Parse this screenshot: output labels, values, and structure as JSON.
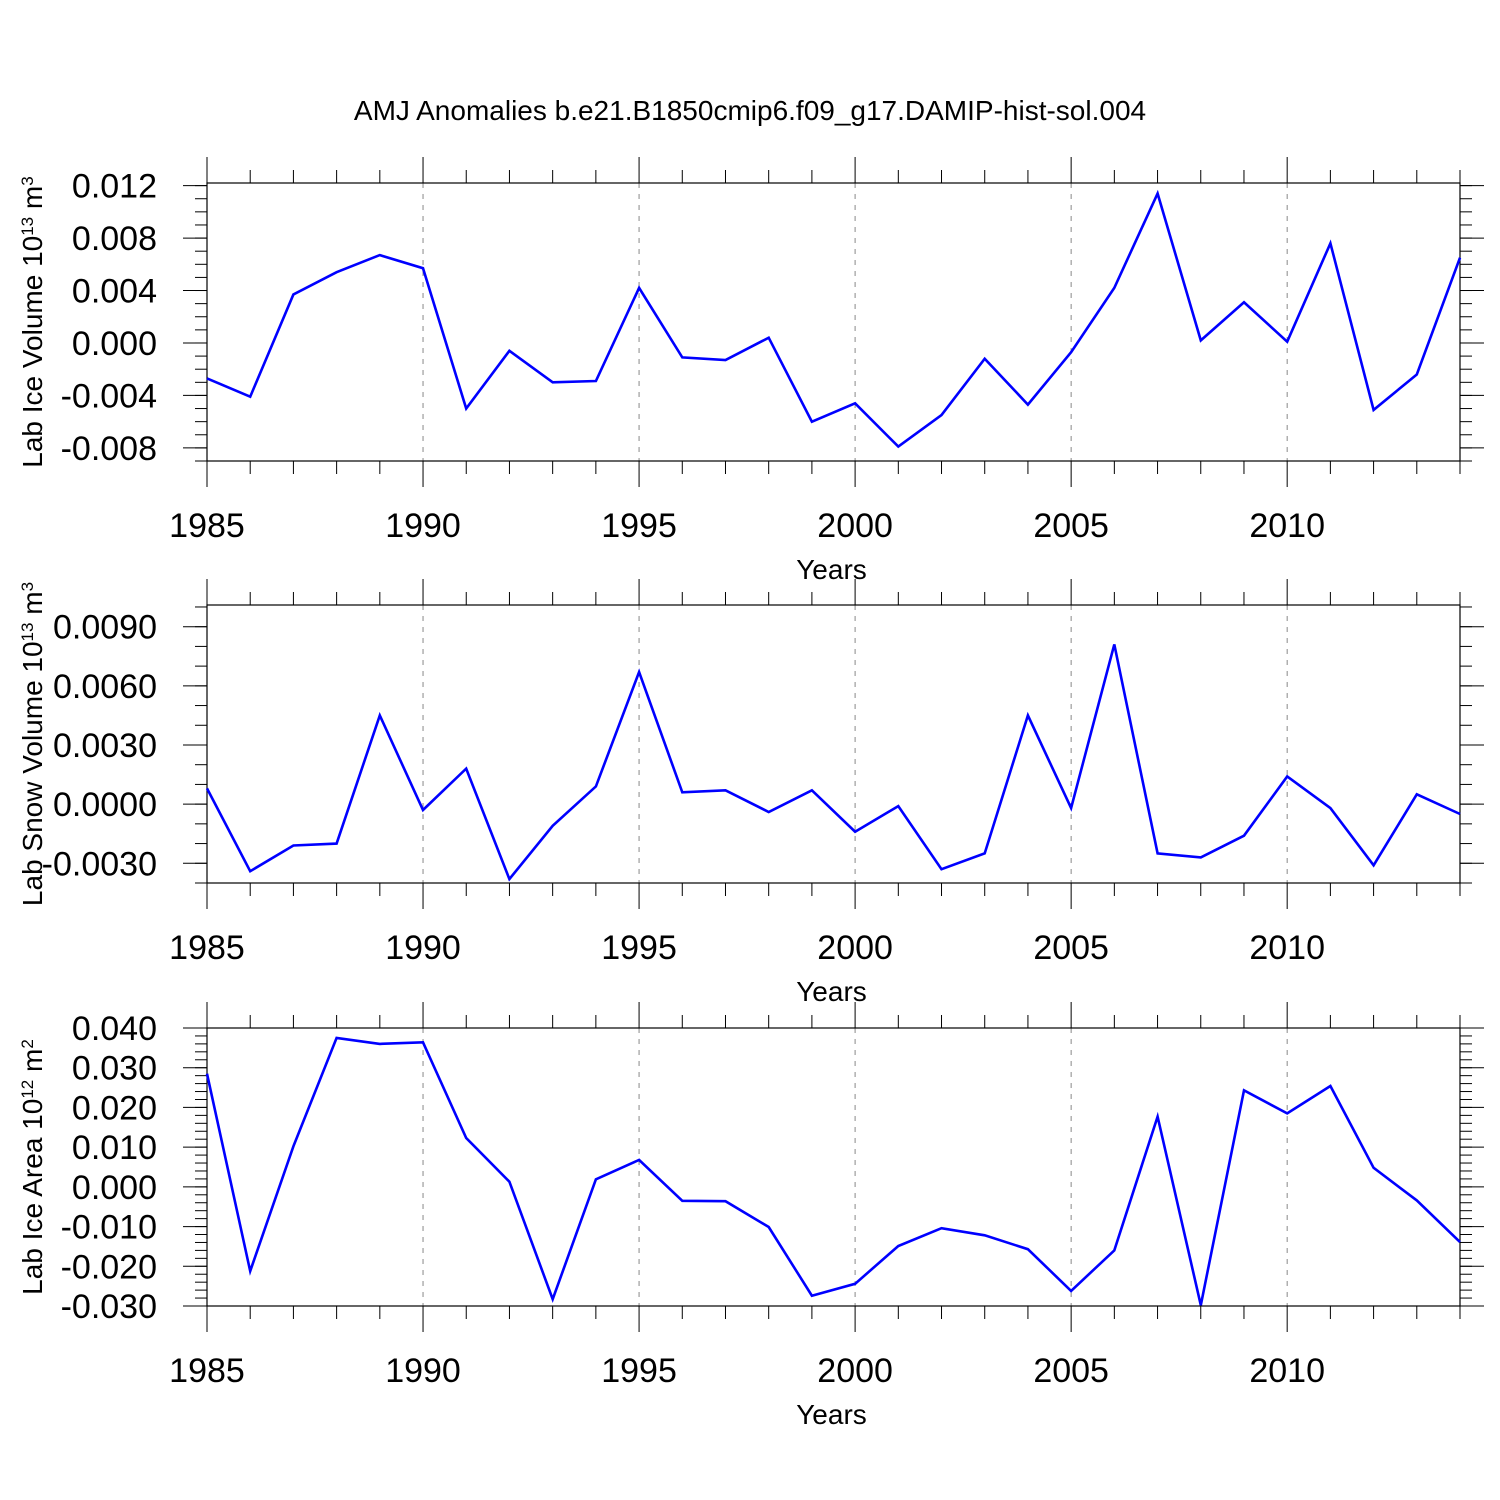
{
  "figure_title": "AMJ Anomalies b.e21.B1850cmip6.f09_g17.DAMIP-hist-sol.004",
  "colors": {
    "line": "#0000ff",
    "frame": "#000000",
    "grid": "#888888"
  },
  "chart_data": [
    {
      "type": "line",
      "ylabel": {
        "main": "Lab Ice Volume 10",
        "exp": "13",
        "unit": " m",
        "unit_exp": "3"
      },
      "xlabel": "Years",
      "xlim": [
        1985,
        2014
      ],
      "ylim": [
        -0.009,
        0.0122
      ],
      "yticks": [
        -0.008,
        -0.004,
        0.0,
        0.004,
        0.008,
        0.012
      ],
      "ytick_labels": [
        "-0.008",
        "-0.004",
        "0.000",
        "0.004",
        "0.008",
        "0.012"
      ],
      "yminor_step": 0.001,
      "xticks": [
        1990,
        1995,
        2000,
        2005,
        2010
      ],
      "xtick_labels": [
        "1985",
        "1990",
        "1995",
        "2000",
        "2005",
        "2010"
      ],
      "xtick_label_values": [
        1985,
        1990,
        1995,
        2000,
        2005,
        2010
      ],
      "x": [
        1985,
        1986,
        1987,
        1988,
        1989,
        1990,
        1991,
        1992,
        1993,
        1994,
        1995,
        1996,
        1997,
        1998,
        1999,
        2000,
        2001,
        2002,
        2003,
        2004,
        2005,
        2006,
        2007,
        2008,
        2009,
        2010,
        2011,
        2012,
        2013,
        2014
      ],
      "y": [
        -0.0027,
        -0.0041,
        0.0037,
        0.0054,
        0.0067,
        0.0057,
        -0.005,
        -0.0006,
        -0.003,
        -0.0029,
        0.0042,
        -0.0011,
        -0.0013,
        0.0004,
        -0.006,
        -0.0046,
        -0.0079,
        -0.0055,
        -0.0012,
        -0.0047,
        -0.0007,
        0.0042,
        0.0114,
        0.0002,
        0.0031,
        0.0001,
        0.0076,
        -0.0051,
        -0.0024,
        0.0065
      ]
    },
    {
      "type": "line",
      "ylabel": {
        "main": "Lab Snow Volume 10",
        "exp": "13",
        "unit": " m",
        "unit_exp": "3"
      },
      "xlabel": "Years",
      "xlim": [
        1985,
        2014
      ],
      "ylim": [
        -0.004,
        0.0101
      ],
      "yticks": [
        -0.003,
        0.0,
        0.003,
        0.006,
        0.009
      ],
      "ytick_labels": [
        "-0.0030",
        "0.0000",
        "0.0030",
        "0.0060",
        "0.0090"
      ],
      "yminor_step": 0.001,
      "xticks": [
        1990,
        1995,
        2000,
        2005,
        2010
      ],
      "xtick_labels": [
        "1985",
        "1990",
        "1995",
        "2000",
        "2005",
        "2010"
      ],
      "xtick_label_values": [
        1985,
        1990,
        1995,
        2000,
        2005,
        2010
      ],
      "x": [
        1985,
        1986,
        1987,
        1988,
        1989,
        1990,
        1991,
        1992,
        1993,
        1994,
        1995,
        1996,
        1997,
        1998,
        1999,
        2000,
        2001,
        2002,
        2003,
        2004,
        2005,
        2006,
        2007,
        2008,
        2009,
        2010,
        2011,
        2012,
        2013,
        2014
      ],
      "y": [
        0.0008,
        -0.0034,
        -0.0021,
        -0.002,
        0.0045,
        -0.0003,
        0.0018,
        -0.0038,
        -0.0011,
        0.0009,
        0.0067,
        0.0006,
        0.0007,
        -0.0004,
        0.0007,
        -0.0014,
        -0.0001,
        -0.0033,
        -0.0025,
        0.0045,
        -0.0002,
        0.0081,
        -0.0025,
        -0.0027,
        -0.0016,
        0.0014,
        -0.0002,
        -0.0031,
        0.0005,
        -0.0005
      ]
    },
    {
      "type": "line",
      "ylabel": {
        "main": "Lab Ice Area 10",
        "exp": "12",
        "unit": " m",
        "unit_exp": "2"
      },
      "xlabel": "Years",
      "xlim": [
        1985,
        2014
      ],
      "ylim": [
        -0.03,
        0.04
      ],
      "yticks": [
        -0.03,
        -0.02,
        -0.01,
        0.0,
        0.01,
        0.02,
        0.03,
        0.04
      ],
      "ytick_labels": [
        "-0.030",
        "-0.020",
        "-0.010",
        "0.000",
        "0.010",
        "0.020",
        "0.030",
        "0.040"
      ],
      "yminor_step": 0.002,
      "xticks": [
        1990,
        1995,
        2000,
        2005,
        2010
      ],
      "xtick_labels": [
        "1985",
        "1990",
        "1995",
        "2000",
        "2005",
        "2010"
      ],
      "xtick_label_values": [
        1985,
        1990,
        1995,
        2000,
        2005,
        2010
      ],
      "x": [
        1985,
        1986,
        1987,
        1988,
        1989,
        1990,
        1991,
        1992,
        1993,
        1994,
        1995,
        1996,
        1997,
        1998,
        1999,
        2000,
        2001,
        2002,
        2003,
        2004,
        2005,
        2006,
        2007,
        2008,
        2009,
        2010,
        2011,
        2012,
        2013,
        2014
      ],
      "y": [
        0.0285,
        -0.0212,
        0.0102,
        0.0375,
        0.036,
        0.0364,
        0.0123,
        0.0013,
        -0.0283,
        0.0019,
        0.0068,
        -0.0035,
        -0.0036,
        -0.0101,
        -0.0274,
        -0.0244,
        -0.0149,
        -0.0104,
        -0.0122,
        -0.0157,
        -0.0262,
        -0.016,
        0.0177,
        -0.0298,
        0.0243,
        0.0185,
        0.0254,
        0.0048,
        -0.0034,
        -0.0139
      ]
    }
  ]
}
